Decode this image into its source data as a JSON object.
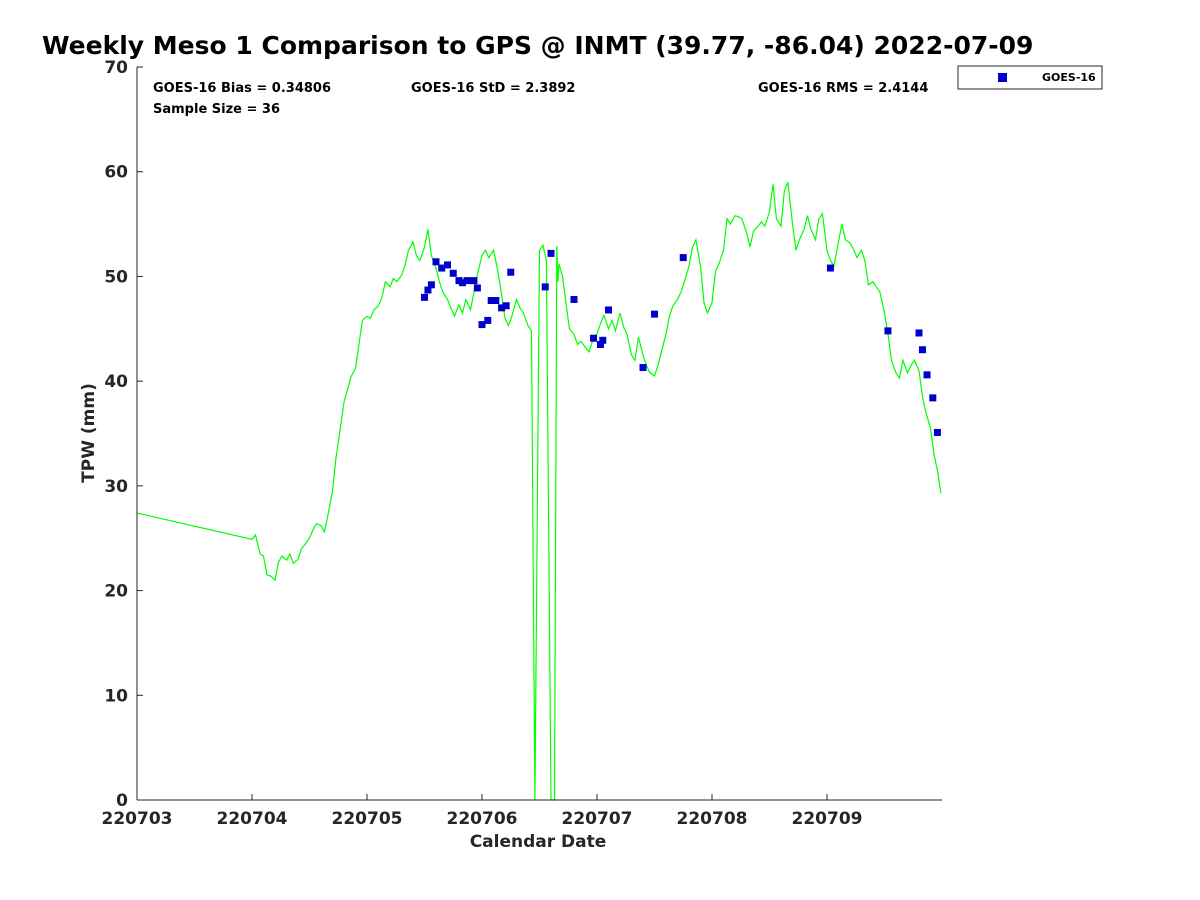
{
  "chart_data": {
    "type": "line",
    "title": "Weekly Meso 1 Comparison to GPS @ INMT (39.77, -86.04) 2022-07-09",
    "xlabel": "Calendar Date",
    "ylabel": "TPW (mm)",
    "xlim": [
      0,
      7
    ],
    "ylim": [
      0,
      70
    ],
    "x_ticks": [
      {
        "pos": 0,
        "label": "220703"
      },
      {
        "pos": 1,
        "label": "220704"
      },
      {
        "pos": 2,
        "label": "220705"
      },
      {
        "pos": 3,
        "label": "220706"
      },
      {
        "pos": 4,
        "label": "220707"
      },
      {
        "pos": 5,
        "label": "220708"
      },
      {
        "pos": 6,
        "label": "220709"
      }
    ],
    "y_ticks": [
      0,
      10,
      20,
      30,
      40,
      50,
      60,
      70
    ],
    "stats": {
      "bias": "GOES-16 Bias = 0.34806",
      "std": "GOES-16 StD = 2.3892",
      "rms": "GOES-16 RMS = 2.4144",
      "sample": "Sample Size = 36"
    },
    "legend": {
      "label": "GOES-16",
      "position": "top-right outside"
    },
    "colors": {
      "gps_line": "#00ff00",
      "goes_marker": "#0000cc",
      "axis": "#262626"
    },
    "series": [
      {
        "name": "GPS",
        "style": "line",
        "x": [
          0.0,
          1.0,
          1.03,
          1.07,
          1.1,
          1.13,
          1.16,
          1.2,
          1.23,
          1.26,
          1.3,
          1.33,
          1.36,
          1.4,
          1.43,
          1.46,
          1.5,
          1.53,
          1.56,
          1.6,
          1.63,
          1.66,
          1.7,
          1.73,
          1.76,
          1.8,
          1.83,
          1.86,
          1.9,
          1.93,
          1.96,
          2.0,
          2.03,
          2.06,
          2.1,
          2.13,
          2.16,
          2.2,
          2.23,
          2.26,
          2.3,
          2.33,
          2.36,
          2.4,
          2.43,
          2.46,
          2.5,
          2.53,
          2.56,
          2.6,
          2.63,
          2.66,
          2.7,
          2.73,
          2.76,
          2.8,
          2.83,
          2.86,
          2.9,
          2.93,
          2.96,
          3.0,
          3.03,
          3.06,
          3.1,
          3.13,
          3.16,
          3.2,
          3.23,
          3.26,
          3.3,
          3.33,
          3.36,
          3.4,
          3.43,
          3.46,
          3.5,
          3.53,
          3.56,
          3.6,
          3.62,
          3.63,
          3.65,
          3.66,
          3.67,
          3.7,
          3.73,
          3.76,
          3.8,
          3.83,
          3.86,
          3.9,
          3.93,
          3.96,
          4.0,
          4.03,
          4.06,
          4.1,
          4.13,
          4.16,
          4.2,
          4.23,
          4.26,
          4.3,
          4.33,
          4.36,
          4.4,
          4.43,
          4.46,
          4.5,
          4.53,
          4.56,
          4.6,
          4.63,
          4.66,
          4.7,
          4.73,
          4.76,
          4.8,
          4.83,
          4.86,
          4.9,
          4.93,
          4.96,
          5.0,
          5.03,
          5.06,
          5.1,
          5.13,
          5.16,
          5.2,
          5.23,
          5.26,
          5.3,
          5.33,
          5.36,
          5.4,
          5.43,
          5.46,
          5.5,
          5.53,
          5.56,
          5.6,
          5.63,
          5.66,
          5.7,
          5.73,
          5.76,
          5.8,
          5.83,
          5.86,
          5.9,
          5.93,
          5.96,
          6.0,
          6.03,
          6.06,
          6.1,
          6.13,
          6.16,
          6.2,
          6.23,
          6.26,
          6.3,
          6.33,
          6.36,
          6.4,
          6.43,
          6.46,
          6.5,
          6.53,
          6.56,
          6.6,
          6.63,
          6.66,
          6.7,
          6.73,
          6.76,
          6.8,
          6.83,
          6.86,
          6.9,
          6.93,
          6.96,
          6.99
        ],
        "y": [
          27.4,
          24.9,
          25.3,
          23.5,
          23.3,
          21.5,
          21.4,
          21.0,
          22.7,
          23.3,
          22.9,
          23.5,
          22.6,
          23.0,
          24.0,
          24.4,
          25.0,
          25.8,
          26.4,
          26.2,
          25.6,
          27.2,
          29.5,
          32.6,
          34.9,
          38.0,
          39.2,
          40.4,
          41.2,
          43.5,
          45.8,
          46.2,
          46.0,
          46.8,
          47.2,
          48.0,
          49.5,
          49.0,
          49.8,
          49.5,
          50.1,
          51.0,
          52.5,
          53.3,
          52.0,
          51.5,
          52.8,
          54.5,
          52.0,
          50.8,
          49.5,
          48.5,
          47.8,
          47.0,
          46.2,
          47.3,
          46.5,
          47.8,
          46.8,
          48.5,
          50.2,
          52.0,
          52.5,
          51.8,
          52.5,
          51.0,
          49.0,
          46.0,
          45.3,
          46.2,
          47.8,
          47.0,
          46.5,
          45.3,
          44.8,
          0,
          52.5,
          53.0,
          51.5,
          0.0,
          0.0,
          0.0,
          52.9,
          49.5,
          51.2,
          50.0,
          47.5,
          45.0,
          44.5,
          43.5,
          43.8,
          43.2,
          42.8,
          43.8,
          44.5,
          45.5,
          46.3,
          45.0,
          45.8,
          44.8,
          46.5,
          45.2,
          44.5,
          42.5,
          42.0,
          44.2,
          42.5,
          41.5,
          40.8,
          40.5,
          41.5,
          42.8,
          44.5,
          46.2,
          47.2,
          47.8,
          48.5,
          49.5,
          51.0,
          52.8,
          53.5,
          51.0,
          47.5,
          46.5,
          47.5,
          50.5,
          51.2,
          52.5,
          55.5,
          55.0,
          55.8,
          55.7,
          55.5,
          54.2,
          52.8,
          54.3,
          54.8,
          55.2,
          54.8,
          56.2,
          58.8,
          55.5,
          54.8,
          58.2,
          59.0,
          55.0,
          52.5,
          53.5,
          54.5,
          55.8,
          54.5,
          53.5,
          55.5,
          56.0,
          52.5,
          51.5,
          51.0,
          53.3,
          55.0,
          53.5,
          53.2,
          52.6,
          51.8,
          52.5,
          51.5,
          49.2,
          49.5,
          49.0,
          48.5,
          46.5,
          44.5,
          42.0,
          40.8,
          40.3,
          42.0,
          40.8,
          41.5,
          42.0,
          41.0,
          38.5,
          37.0,
          35.5,
          33.0,
          31.5,
          29.3
        ]
      },
      {
        "name": "GOES-16",
        "style": "marker",
        "x": [
          2.5,
          2.53,
          2.56,
          2.6,
          2.65,
          2.7,
          2.75,
          2.8,
          2.83,
          2.87,
          2.93,
          2.96,
          3.0,
          3.05,
          3.08,
          3.12,
          3.17,
          3.21,
          3.25,
          3.55,
          3.6,
          3.8,
          3.97,
          4.03,
          4.05,
          4.1,
          4.4,
          4.5,
          4.75,
          6.03,
          6.53,
          6.8,
          6.83,
          6.87,
          6.92,
          6.96
        ],
        "y": [
          48.0,
          48.7,
          49.2,
          51.4,
          50.8,
          51.1,
          50.3,
          49.6,
          49.4,
          49.6,
          49.6,
          48.9,
          45.4,
          45.8,
          47.7,
          47.7,
          47.0,
          47.2,
          50.4,
          49.0,
          52.2,
          47.8,
          44.1,
          43.5,
          43.9,
          46.8,
          41.3,
          46.4,
          51.8,
          50.8,
          44.8,
          44.6,
          43.0,
          40.6,
          38.4,
          35.1
        ]
      }
    ]
  }
}
